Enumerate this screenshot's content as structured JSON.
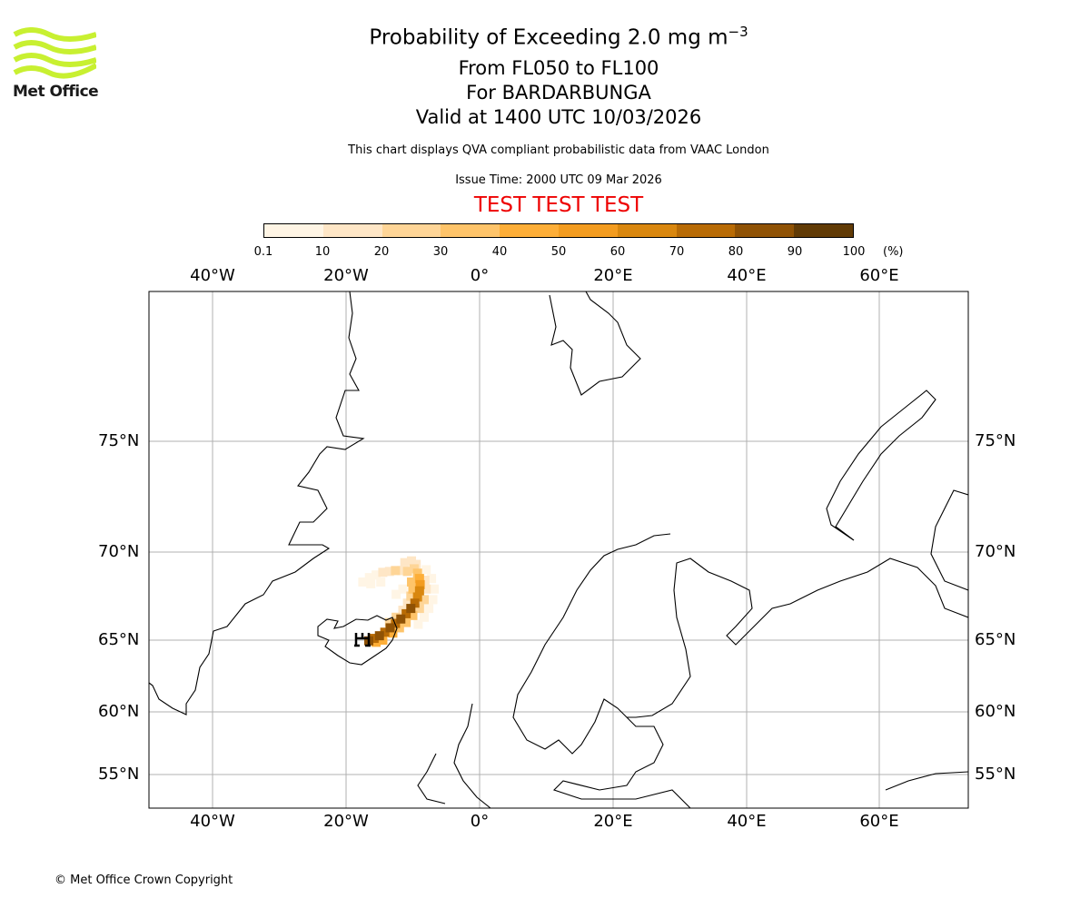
{
  "logo": {
    "text": "Met Office",
    "color": "#c8f031"
  },
  "title": {
    "line1": "Probability of Exceeding 2.0 mg m",
    "line1_sup": "−3",
    "line2": "From FL050 to FL100",
    "line3": "For BARDARBUNGA",
    "line4": "Valid at 1400 UTC 10/03/2026",
    "note": "This chart displays QVA compliant probabilistic data from VAAC London",
    "issue": "Issue Time: 2000 UTC 09 Mar 2026",
    "test_banner": "TEST TEST TEST"
  },
  "colorbar": {
    "ticks": [
      "0.1",
      "10",
      "20",
      "30",
      "40",
      "50",
      "60",
      "70",
      "80",
      "90",
      "100"
    ],
    "unit": "(%)",
    "colors": [
      "#fff5e5",
      "#fee6c6",
      "#fed597",
      "#fec46a",
      "#fdae38",
      "#f39c20",
      "#d9870f",
      "#b86b05",
      "#8f5205",
      "#613b06"
    ]
  },
  "axes": {
    "lon_labels": [
      "40°W",
      "20°W",
      "0°",
      "20°E",
      "40°E",
      "60°E"
    ],
    "lat_labels": [
      "75°N",
      "70°N",
      "65°N",
      "60°N",
      "55°N"
    ]
  },
  "volcano": {
    "name": "BARDARBUNGA",
    "icon": "volcano-icon"
  },
  "plume_cells": [
    [
      -16.6,
      64.95,
      80
    ],
    [
      -15.8,
      65.1,
      70
    ],
    [
      -15,
      65.25,
      80
    ],
    [
      -14.2,
      65.45,
      70
    ],
    [
      -13.4,
      65.7,
      80
    ],
    [
      -12.6,
      65.95,
      70
    ],
    [
      -11.8,
      66.2,
      80
    ],
    [
      -11,
      66.5,
      70
    ],
    [
      -10.3,
      66.8,
      80
    ],
    [
      -9.7,
      67.1,
      70
    ],
    [
      -9.3,
      67.45,
      60
    ],
    [
      -9,
      67.8,
      60
    ],
    [
      -8.9,
      68.15,
      50
    ],
    [
      -9,
      68.5,
      40
    ],
    [
      -9.3,
      68.8,
      30
    ],
    [
      -9.8,
      69.05,
      20
    ],
    [
      -15.5,
      64.85,
      40
    ],
    [
      -14.5,
      65.0,
      40
    ],
    [
      -13,
      65.4,
      40
    ],
    [
      -12,
      65.7,
      30
    ],
    [
      -11,
      66.0,
      30
    ],
    [
      -10,
      66.4,
      30
    ],
    [
      -9,
      66.8,
      20
    ],
    [
      -8.3,
      67.3,
      20
    ],
    [
      -8,
      67.9,
      10
    ],
    [
      -8.2,
      68.4,
      10
    ],
    [
      -13.5,
      66.0,
      20
    ],
    [
      -12.5,
      66.3,
      20
    ],
    [
      -11.5,
      66.7,
      10
    ],
    [
      -10.8,
      67.1,
      10
    ],
    [
      -10.3,
      67.5,
      20
    ],
    [
      -10,
      67.9,
      30
    ],
    [
      -10.2,
      68.3,
      30
    ],
    [
      -10.8,
      68.9,
      20
    ],
    [
      -11.7,
      68.95,
      10
    ],
    [
      -12.6,
      68.95,
      20
    ],
    [
      -13.5,
      68.9,
      10
    ],
    [
      -14.5,
      68.85,
      10
    ],
    [
      -15.5,
      68.7,
      0.1
    ],
    [
      -16.5,
      68.55,
      0.1
    ],
    [
      -17.5,
      68.3,
      0.1
    ],
    [
      -16.3,
      68.2,
      0.1
    ],
    [
      -14.8,
      68.3,
      0.1
    ],
    [
      -11.2,
      69.4,
      10
    ],
    [
      -10.2,
      69.5,
      10
    ],
    [
      -9.5,
      69.3,
      10
    ],
    [
      -8,
      69.0,
      0.1
    ],
    [
      -7.2,
      68.5,
      0.1
    ],
    [
      -6.8,
      67.9,
      0.1
    ],
    [
      -7.0,
      67.3,
      0.1
    ],
    [
      -7.6,
      66.8,
      0.1
    ],
    [
      -8.3,
      66.3,
      0.1
    ],
    [
      -9.2,
      65.9,
      0.1
    ],
    [
      -11.5,
      67.9,
      0.1
    ],
    [
      -12.5,
      67.6,
      0.1
    ]
  ],
  "footer": {
    "copyright": "© Met Office Crown Copyright"
  }
}
